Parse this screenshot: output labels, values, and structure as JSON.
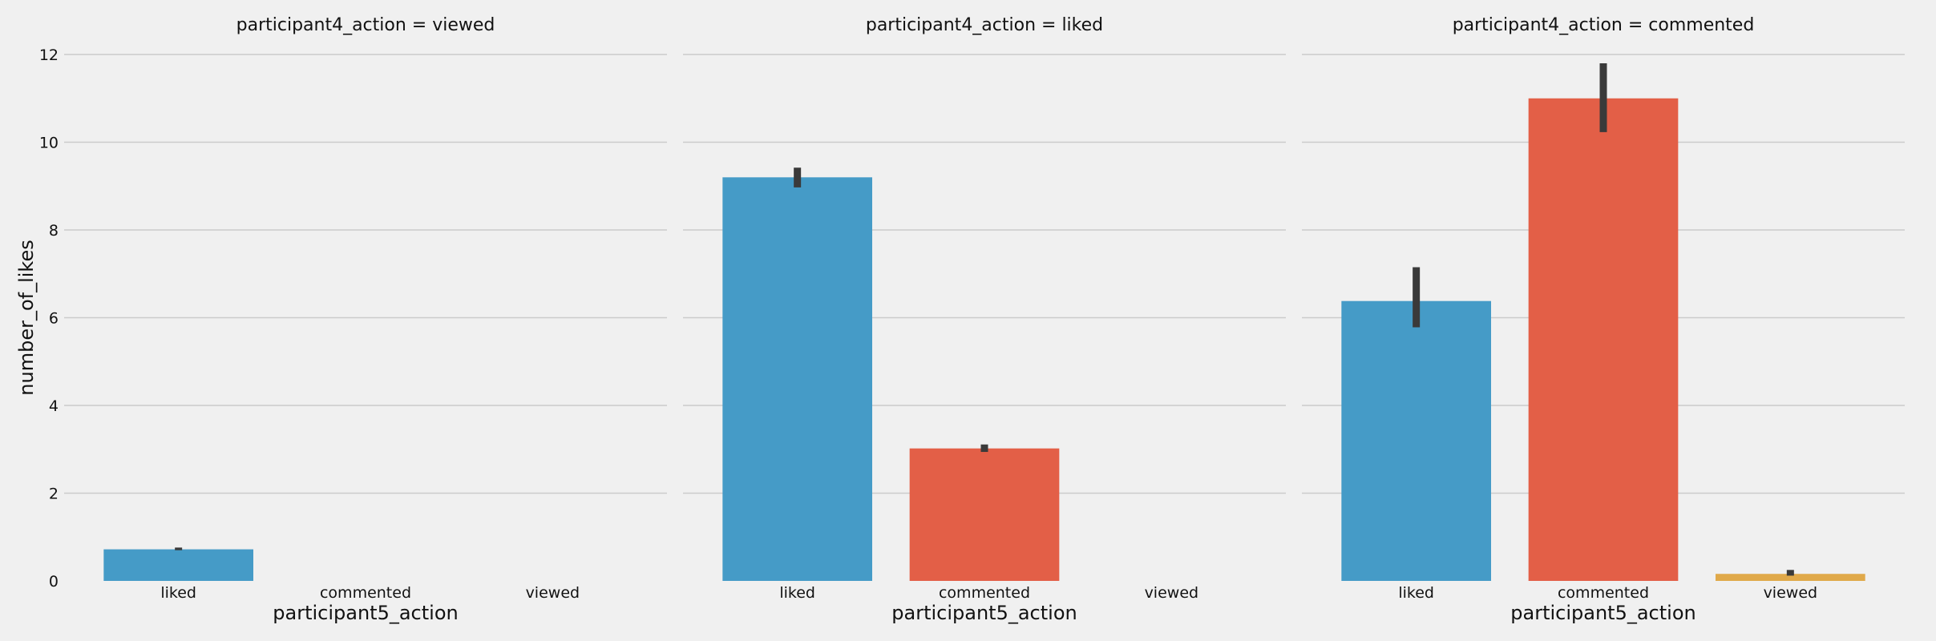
{
  "chart_data": {
    "type": "bar",
    "ylabel": "number_of_likes",
    "xlabel": "participant5_action",
    "ylim": [
      0,
      12
    ],
    "yticks": [
      0,
      2,
      4,
      6,
      8,
      10,
      12
    ],
    "categories": [
      "liked",
      "commented",
      "viewed"
    ],
    "colors": {
      "liked": "#459bc7",
      "commented": "#e35f47",
      "viewed": "#e0a94a",
      "error_bar": "#3a3a3a"
    },
    "panels": [
      {
        "title": "participant4_action = viewed",
        "bars": [
          {
            "category": "liked",
            "value": 0.72,
            "ci": [
              0.7,
              0.76
            ]
          },
          {
            "category": "commented",
            "value": null,
            "ci": null
          },
          {
            "category": "viewed",
            "value": null,
            "ci": null
          }
        ]
      },
      {
        "title": "participant4_action = liked",
        "bars": [
          {
            "category": "liked",
            "value": 9.2,
            "ci": [
              8.97,
              9.42
            ]
          },
          {
            "category": "commented",
            "value": 3.02,
            "ci": [
              2.94,
              3.11
            ]
          },
          {
            "category": "viewed",
            "value": null,
            "ci": null
          }
        ]
      },
      {
        "title": "participant4_action = commented",
        "bars": [
          {
            "category": "liked",
            "value": 6.38,
            "ci": [
              5.78,
              7.15
            ]
          },
          {
            "category": "commented",
            "value": 11.0,
            "ci": [
              10.23,
              11.8
            ]
          },
          {
            "category": "viewed",
            "value": 0.16,
            "ci": [
              0.12,
              0.25
            ]
          }
        ]
      }
    ]
  }
}
